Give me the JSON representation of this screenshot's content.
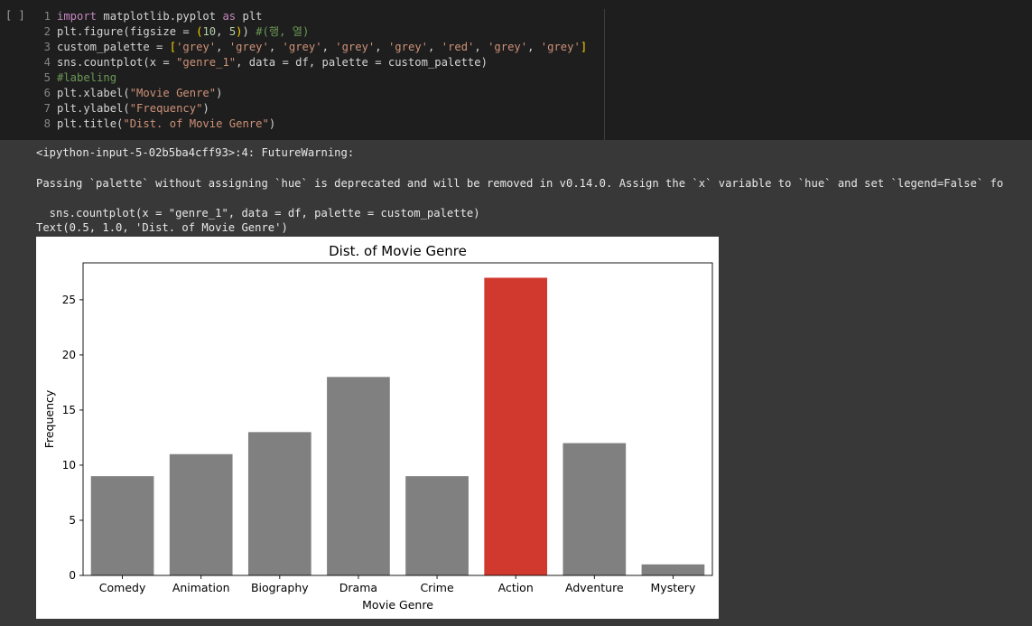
{
  "cell": {
    "run_indicator": "[ ]",
    "code_lines": [
      {
        "n": "1",
        "tokens": [
          {
            "t": "import",
            "c": "kw"
          },
          {
            "t": " matplotlib.pyplot "
          },
          {
            "t": "as",
            "c": "kw"
          },
          {
            "t": " plt"
          }
        ]
      },
      {
        "n": "2",
        "tokens": [
          {
            "t": "plt.figure(figsize = "
          },
          {
            "t": "(",
            "c": "pn"
          },
          {
            "t": "10",
            "c": "num"
          },
          {
            "t": ", "
          },
          {
            "t": "5",
            "c": "num"
          },
          {
            "t": ")",
            "c": "pn"
          },
          {
            "t": ") "
          },
          {
            "t": "#(행, 열)",
            "c": "cm"
          }
        ]
      },
      {
        "n": "3",
        "tokens": [
          {
            "t": "custom_palette = "
          },
          {
            "t": "[",
            "c": "pn"
          },
          {
            "t": "'grey'",
            "c": "str"
          },
          {
            "t": ", "
          },
          {
            "t": "'grey'",
            "c": "str"
          },
          {
            "t": ", "
          },
          {
            "t": "'grey'",
            "c": "str"
          },
          {
            "t": ", "
          },
          {
            "t": "'grey'",
            "c": "str"
          },
          {
            "t": ", "
          },
          {
            "t": "'grey'",
            "c": "str"
          },
          {
            "t": ", "
          },
          {
            "t": "'red'",
            "c": "str"
          },
          {
            "t": ", "
          },
          {
            "t": "'grey'",
            "c": "str"
          },
          {
            "t": ", "
          },
          {
            "t": "'grey'",
            "c": "str"
          },
          {
            "t": "]",
            "c": "pn"
          }
        ]
      },
      {
        "n": "4",
        "tokens": [
          {
            "t": "sns.countplot(x = "
          },
          {
            "t": "\"genre_1\"",
            "c": "str"
          },
          {
            "t": ", data = df, palette = custom_palette)"
          }
        ]
      },
      {
        "n": "5",
        "tokens": [
          {
            "t": "#labeling",
            "c": "cm"
          }
        ]
      },
      {
        "n": "6",
        "tokens": [
          {
            "t": "plt.xlabel("
          },
          {
            "t": "\"Movie Genre\"",
            "c": "str"
          },
          {
            "t": ")"
          }
        ]
      },
      {
        "n": "7",
        "tokens": [
          {
            "t": "plt.ylabel("
          },
          {
            "t": "\"Frequency\"",
            "c": "str"
          },
          {
            "t": ")"
          }
        ]
      },
      {
        "n": "8",
        "tokens": [
          {
            "t": "plt.title("
          },
          {
            "t": "\"Dist. of Movie Genre\"",
            "c": "str"
          },
          {
            "t": ")"
          }
        ]
      }
    ]
  },
  "output": {
    "warning_header": "<ipython-input-5-02b5ba4cff93>:4: FutureWarning:",
    "warning_body": "Passing `palette` without assigning `hue` is deprecated and will be removed in v0.14.0. Assign the `x` variable to `hue` and set `legend=False` fo",
    "warning_code": "  sns.countplot(x = \"genre_1\", data = df, palette = custom_palette)",
    "text_repr": "Text(0.5, 1.0, 'Dist. of Movie Genre')"
  },
  "colors": {
    "grey_bar": "#808080",
    "red_bar": "#d1382e"
  },
  "chart_data": {
    "type": "bar",
    "title": "Dist. of Movie Genre",
    "xlabel": "Movie Genre",
    "ylabel": "Frequency",
    "categories": [
      "Comedy",
      "Animation",
      "Biography",
      "Drama",
      "Crime",
      "Action",
      "Adventure",
      "Mystery"
    ],
    "values": [
      9,
      11,
      13,
      18,
      9,
      27,
      12,
      1
    ],
    "bar_colors": [
      "grey",
      "grey",
      "grey",
      "grey",
      "grey",
      "red",
      "grey",
      "grey"
    ],
    "ylim": [
      0,
      28.35
    ],
    "yticks": [
      0,
      5,
      10,
      15,
      20,
      25
    ],
    "grid": false
  }
}
